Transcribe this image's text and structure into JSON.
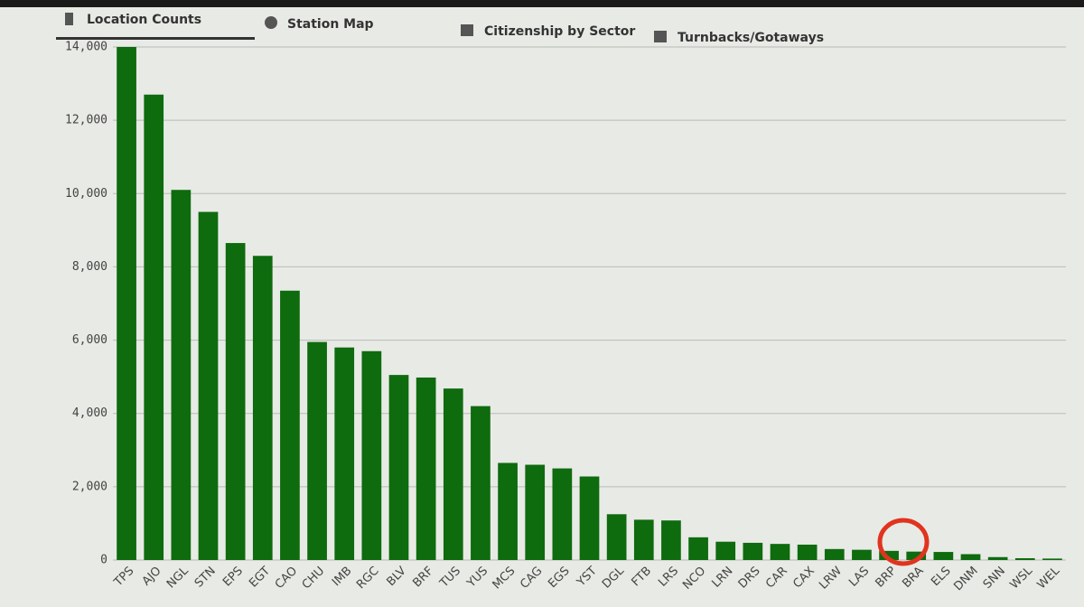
{
  "tabs": [
    "Location Counts",
    "Station Map",
    "Citizenship by Sector",
    "Turnbacks/Gotaways"
  ],
  "chart_data": {
    "type": "bar",
    "categories": [
      "TPS",
      "AJO",
      "NGL",
      "STN",
      "EPS",
      "EGT",
      "CAO",
      "CHU",
      "IMB",
      "RGC",
      "BLV",
      "BRF",
      "TUS",
      "YUS",
      "MCS",
      "CAG",
      "EGS",
      "YST",
      "DGL",
      "FTB",
      "LRS",
      "NCO",
      "LRN",
      "DRS",
      "CAR",
      "CAX",
      "LRW",
      "LAS",
      "BRP",
      "BRA",
      "ELS",
      "DNM",
      "SNN",
      "WSL",
      "WEL"
    ],
    "values": [
      14000,
      12700,
      10100,
      9500,
      8650,
      8300,
      7350,
      5950,
      5800,
      5700,
      5050,
      4980,
      4680,
      4200,
      2650,
      2600,
      2500,
      2280,
      1250,
      1100,
      1080,
      620,
      500,
      470,
      440,
      420,
      300,
      280,
      250,
      230,
      220,
      160,
      80,
      50,
      40
    ],
    "color": "#0e6b0e",
    "ylim": [
      0,
      14000
    ],
    "yticks": [
      0,
      {
        "value": 2000,
        "label": "2,000"
      },
      {
        "value": 4000,
        "label": "4,000"
      },
      {
        "value": 6000,
        "label": "6,000"
      },
      {
        "value": 8000,
        "label": "8,000"
      },
      {
        "value": 10000,
        "label": "10,000"
      },
      {
        "value": 12000,
        "label": "12,000"
      },
      {
        "value": 14000,
        "label": "14,000"
      }
    ],
    "grid": true
  }
}
